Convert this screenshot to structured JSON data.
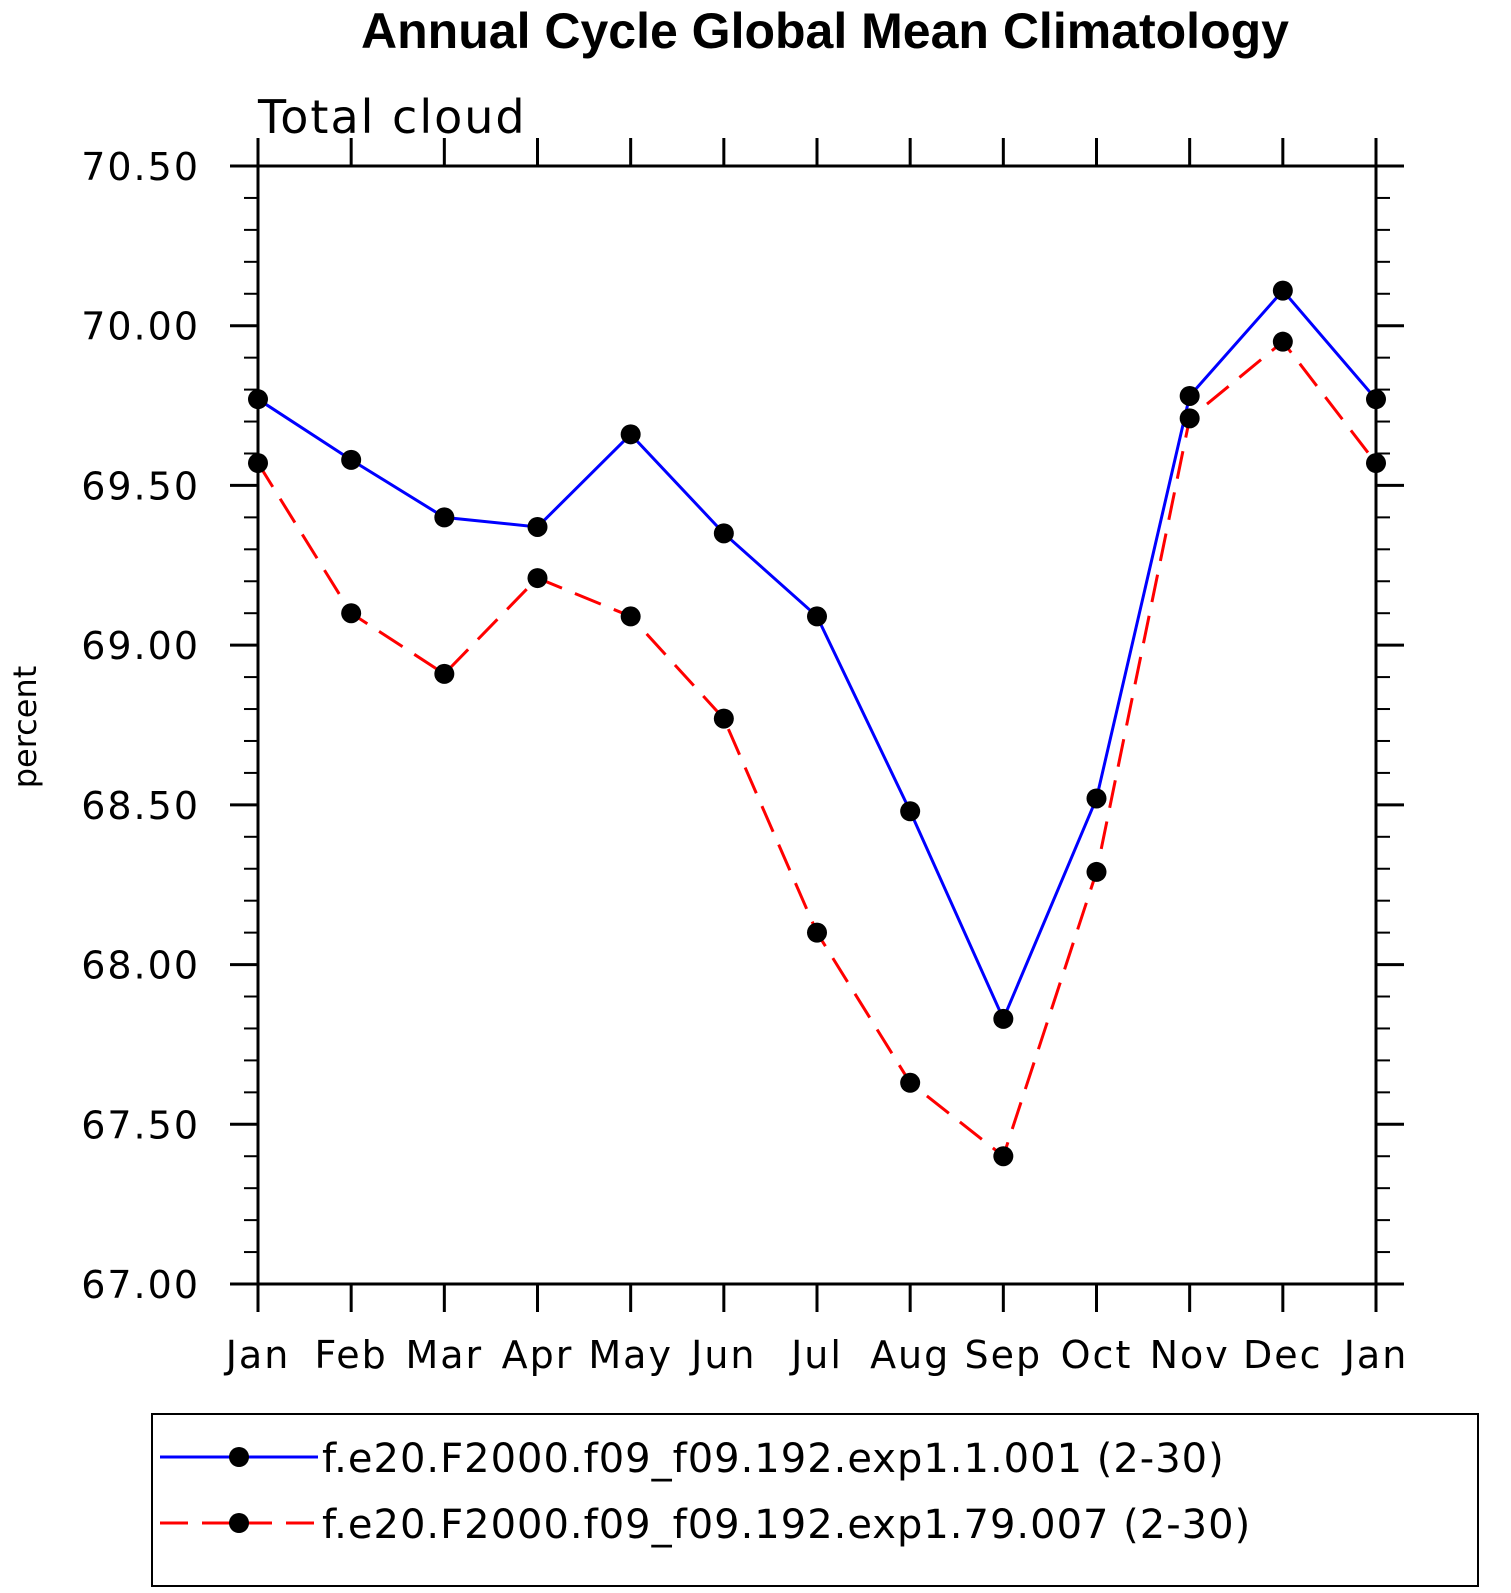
{
  "chart_data": {
    "type": "line",
    "title": "Annual Cycle Global Mean Climatology",
    "subtitle": "Total cloud",
    "xlabel": "",
    "ylabel": "percent",
    "categories": [
      "Jan",
      "Feb",
      "Mar",
      "Apr",
      "May",
      "Jun",
      "Jul",
      "Aug",
      "Sep",
      "Oct",
      "Nov",
      "Dec",
      "Jan"
    ],
    "ylim": [
      67.0,
      70.5
    ],
    "yticks": [
      "67.00",
      "67.50",
      "68.00",
      "68.50",
      "69.00",
      "69.50",
      "70.00",
      "70.50"
    ],
    "grid": false,
    "legend_position": "bottom",
    "series": [
      {
        "name": "f.e20.F2000.f09_f09.192.exp1.1.001 (2-30)",
        "color": "#0000ff",
        "dash": "solid",
        "values": [
          69.77,
          69.58,
          69.4,
          69.37,
          69.66,
          69.35,
          69.09,
          68.48,
          67.83,
          68.52,
          69.78,
          70.11,
          69.77
        ]
      },
      {
        "name": "f.e20.F2000.f09_f09.192.exp1.79.007 (2-30)",
        "color": "#ff0000",
        "dash": "dashed",
        "values": [
          69.57,
          69.1,
          68.91,
          69.21,
          69.09,
          68.77,
          68.1,
          67.63,
          67.4,
          68.29,
          69.71,
          69.95,
          69.57
        ]
      }
    ]
  }
}
